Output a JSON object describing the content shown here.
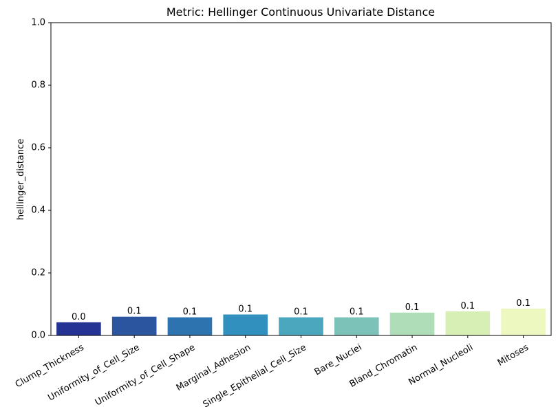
{
  "chart_data": {
    "type": "bar",
    "title": "Metric: Hellinger Continuous Univariate Distance",
    "xlabel": "",
    "ylabel": "hellinger_distance",
    "ylim": [
      0,
      1.0
    ],
    "yticks": [
      "0.0",
      "0.2",
      "0.4",
      "0.6",
      "0.8",
      "1.0"
    ],
    "categories": [
      "Clump_Thickness",
      "Uniformity_of_Cell_Size",
      "Uniformity_of_Cell_Shape",
      "Marginal_Adhesion",
      "Single_Epithelial_Cell_Size",
      "Bare_Nuclei",
      "Bland_Chromatin",
      "Normal_Nucleoli",
      "Mitoses"
    ],
    "values": [
      0.042,
      0.06,
      0.058,
      0.067,
      0.058,
      0.058,
      0.073,
      0.077,
      0.086
    ],
    "data_labels": [
      "0.0",
      "0.1",
      "0.1",
      "0.1",
      "0.1",
      "0.1",
      "0.1",
      "0.1",
      "0.1"
    ],
    "colors": [
      "#253494",
      "#2c559f",
      "#2c73b0",
      "#3190bd",
      "#4aa7be",
      "#7cc2b8",
      "#aeddb8",
      "#d7eeb5",
      "#edf8c0"
    ],
    "grid": false,
    "legend": "none"
  }
}
